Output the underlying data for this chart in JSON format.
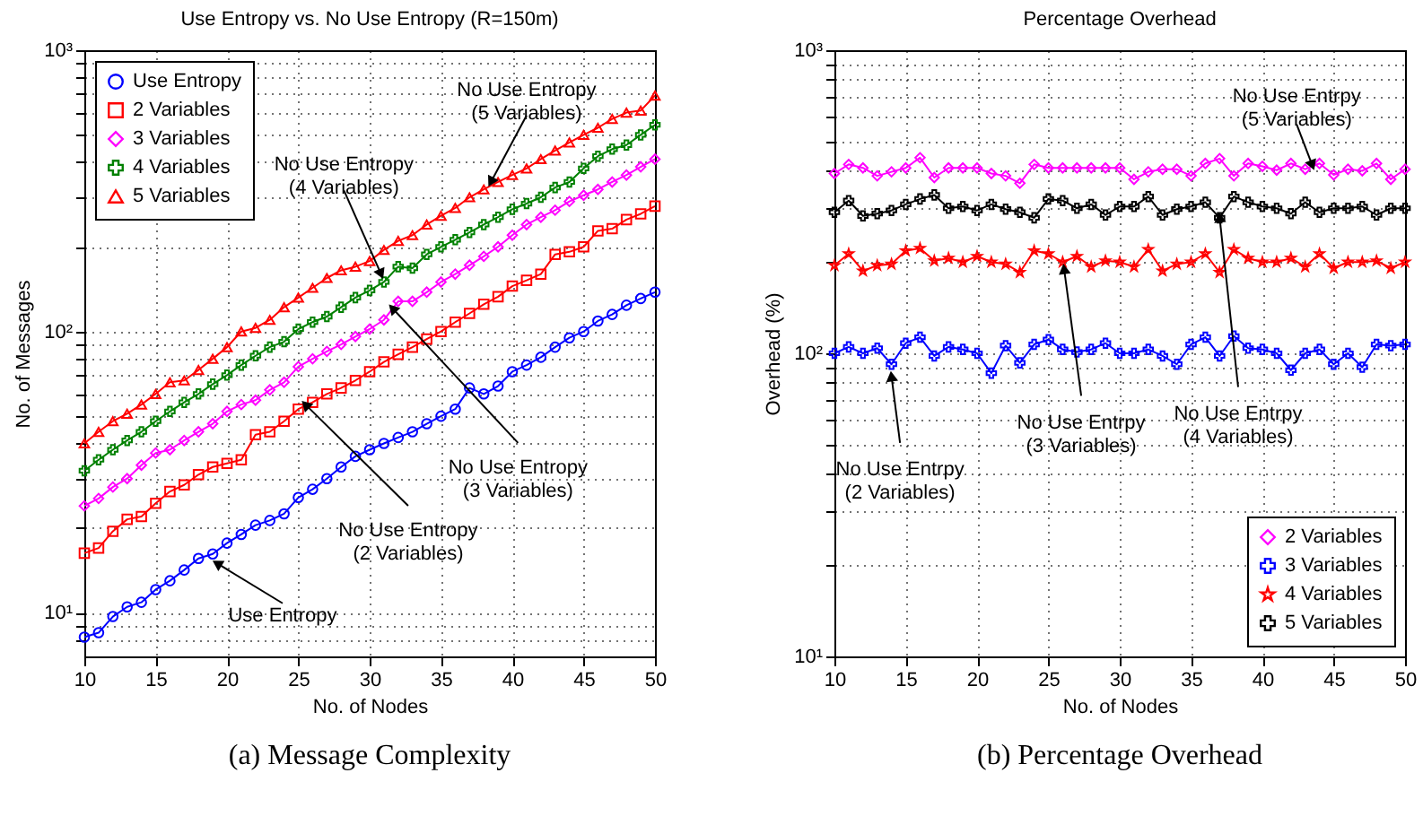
{
  "chart_data": [
    {
      "type": "line",
      "title": "Use Entropy vs. No Use Entropy (R=150m)",
      "xlabel": "No. of Nodes",
      "ylabel": "No. of Messages",
      "x": [
        10,
        11,
        12,
        13,
        14,
        15,
        16,
        17,
        18,
        19,
        20,
        21,
        22,
        23,
        24,
        25,
        26,
        27,
        28,
        29,
        30,
        31,
        32,
        33,
        34,
        35,
        36,
        37,
        38,
        39,
        40,
        41,
        42,
        43,
        44,
        45,
        46,
        47,
        48,
        49,
        50
      ],
      "series": [
        {
          "name": "Use Entropy",
          "color": "#0000ff",
          "marker": "circle",
          "values": [
            8.2,
            8.5,
            9.7,
            10.5,
            10.9,
            12.1,
            13,
            14.2,
            15.6,
            16.2,
            17.7,
            19,
            20.5,
            21.3,
            22.5,
            25.7,
            27.5,
            30,
            33,
            36,
            38,
            40,
            42,
            44,
            47,
            50,
            53,
            63,
            60,
            64,
            72,
            76,
            81,
            88,
            95,
            100,
            109,
            115,
            124,
            131,
            138
          ]
        },
        {
          "name": "2 Variables",
          "color": "#ff0000",
          "marker": "square",
          "values": [
            16.3,
            17,
            19.5,
            21.5,
            22,
            24.5,
            27,
            28.5,
            31,
            33,
            34,
            35,
            43,
            44,
            48,
            53,
            56,
            60,
            63,
            67,
            72,
            78,
            83,
            88,
            94,
            100,
            108,
            116,
            125,
            133,
            145,
            152,
            160,
            188,
            192,
            200,
            228,
            232,
            250,
            262,
            279
          ]
        },
        {
          "name": "3 Variables",
          "color": "#ff00ff",
          "marker": "diamond",
          "values": [
            24,
            25.5,
            28,
            30,
            33.5,
            37,
            38,
            41,
            44,
            47,
            52,
            55,
            57,
            62,
            66,
            75,
            80,
            85,
            90,
            96,
            102,
            110,
            128,
            128,
            138,
            150,
            160,
            172,
            185,
            200,
            220,
            240,
            255,
            270,
            290,
            305,
            320,
            340,
            360,
            385,
            410
          ]
        },
        {
          "name": "4 Variables",
          "color": "#008000",
          "marker": "cross",
          "values": [
            32,
            35,
            38,
            41,
            44,
            48,
            52,
            56,
            60,
            65,
            70,
            76,
            82,
            88,
            92,
            102,
            108,
            113,
            122,
            132,
            140,
            150,
            170,
            168,
            188,
            200,
            212,
            225,
            240,
            255,
            272,
            285,
            300,
            325,
            340,
            380,
            420,
            445,
            460,
            500,
            543
          ]
        },
        {
          "name": "5 Variables",
          "color": "#ff0000",
          "marker": "triangle",
          "values": [
            40,
            44,
            48,
            51,
            55,
            60,
            66,
            67,
            73,
            80,
            88,
            100,
            103,
            110,
            122,
            132,
            143,
            155,
            165,
            170,
            178,
            195,
            210,
            220,
            240,
            258,
            275,
            300,
            320,
            340,
            360,
            380,
            410,
            440,
            470,
            500,
            530,
            570,
            600,
            610,
            690
          ]
        }
      ],
      "xlim": [
        10,
        50
      ],
      "xticks": [
        10,
        15,
        20,
        25,
        30,
        35,
        40,
        45,
        50
      ],
      "ylim": [
        7,
        1000
      ],
      "yticks": [
        {
          "value": 8,
          "label": null
        },
        {
          "value": 9,
          "label": null
        },
        {
          "value": 10,
          "label": "10¹"
        },
        {
          "value": 20,
          "label": null
        },
        {
          "value": 30,
          "label": null
        },
        {
          "value": 40,
          "label": null
        },
        {
          "value": 50,
          "label": null
        },
        {
          "value": 60,
          "label": null
        },
        {
          "value": 70,
          "label": null
        },
        {
          "value": 80,
          "label": null
        },
        {
          "value": 90,
          "label": null
        },
        {
          "value": 100,
          "label": "10²"
        },
        {
          "value": 200,
          "label": null
        },
        {
          "value": 300,
          "label": null
        },
        {
          "value": 400,
          "label": null
        },
        {
          "value": 500,
          "label": null
        },
        {
          "value": 600,
          "label": null
        },
        {
          "value": 700,
          "label": null
        },
        {
          "value": 800,
          "label": null
        },
        {
          "value": 900,
          "label": null
        },
        {
          "value": 1000,
          "label": "10³"
        }
      ],
      "log": "y",
      "grid": true,
      "legend": "top left",
      "annotations": [
        {
          "text": "No Use Entropy\n(5 Variables)",
          "x": 38.5,
          "y": 340
        },
        {
          "text": "No Use Entropy\n(4 Variables)",
          "x": 30.8,
          "y": 160
        },
        {
          "text": "No Use Entropy\n(3 Variables)",
          "x": 31.6,
          "y": 121
        },
        {
          "text": "No Use Entropy\n(2 Variables)",
          "x": 25.5,
          "y": 55
        },
        {
          "text": "Use Entropy",
          "x": 19.3,
          "y": 15
        },
        "(a) Message Complexity"
      ]
    },
    {
      "type": "line",
      "title": "Percentage Overhead",
      "xlabel": "No. of Nodes",
      "ylabel": "Overhead (%)",
      "x": [
        10,
        11,
        12,
        13,
        14,
        15,
        16,
        17,
        18,
        19,
        20,
        21,
        22,
        23,
        24,
        25,
        26,
        27,
        28,
        29,
        30,
        31,
        32,
        33,
        34,
        35,
        36,
        37,
        38,
        39,
        40,
        41,
        42,
        43,
        44,
        45,
        46,
        47,
        48,
        49,
        50
      ],
      "series": [
        {
          "name": "2 Variables",
          "color": "#ff00ff",
          "marker": "diamond",
          "values": [
            392,
            420,
            409,
            385,
            397,
            409,
            442,
            380,
            409,
            409,
            409,
            392,
            385,
            364,
            420,
            409,
            409,
            409,
            409,
            409,
            409,
            375,
            397,
            405,
            405,
            385,
            423,
            439,
            385,
            423,
            414,
            402,
            423,
            405,
            423,
            388,
            405,
            400,
            423,
            375,
            405
          ]
        },
        {
          "name": "3 Variables",
          "color": "#0000ff",
          "marker": "cross",
          "values": [
            100,
            105,
            100,
            104,
            92,
            108,
            113,
            98,
            105,
            103,
            100,
            86,
            106,
            93,
            107,
            111,
            103,
            101,
            103,
            108,
            100,
            100,
            103,
            98,
            92,
            107,
            113,
            98,
            114,
            104,
            103,
            100,
            88,
            100,
            103,
            92,
            100,
            90,
            107,
            106,
            107
          ]
        },
        {
          "name": "4 Variables",
          "color": "#ff0000",
          "marker": "star",
          "values": [
            195,
            213,
            187,
            195,
            197,
            218,
            222,
            202,
            206,
            200,
            209,
            200,
            197,
            185,
            218,
            213,
            200,
            209,
            193,
            202,
            200,
            193,
            220,
            187,
            197,
            200,
            213,
            185,
            220,
            206,
            200,
            200,
            206,
            193,
            213,
            191,
            200,
            200,
            202,
            191,
            200
          ]
        },
        {
          "name": "5 Variables",
          "color": "#000000",
          "marker": "cross",
          "values": [
            292,
            319,
            284,
            289,
            296,
            310,
            323,
            333,
            301,
            305,
            296,
            310,
            299,
            292,
            280,
            323,
            319,
            301,
            310,
            286,
            305,
            305,
            329,
            286,
            299,
            305,
            315,
            280,
            329,
            315,
            305,
            301,
            289,
            315,
            292,
            301,
            301,
            305,
            286,
            301,
            301
          ]
        }
      ],
      "xlim": [
        10,
        50
      ],
      "xticks": [
        10,
        15,
        20,
        25,
        30,
        35,
        40,
        45,
        50
      ],
      "ylim": [
        10,
        1000
      ],
      "yticks": [
        {
          "value": 10,
          "label": "10¹"
        },
        {
          "value": 20,
          "label": null
        },
        {
          "value": 30,
          "label": null
        },
        {
          "value": 40,
          "label": null
        },
        {
          "value": 50,
          "label": null
        },
        {
          "value": 60,
          "label": null
        },
        {
          "value": 70,
          "label": null
        },
        {
          "value": 80,
          "label": null
        },
        {
          "value": 90,
          "label": null
        },
        {
          "value": 100,
          "label": "10²"
        },
        {
          "value": 200,
          "label": null
        },
        {
          "value": 300,
          "label": null
        },
        {
          "value": 400,
          "label": null
        },
        {
          "value": 500,
          "label": null
        },
        {
          "value": 600,
          "label": null
        },
        {
          "value": 700,
          "label": null
        },
        {
          "value": 800,
          "label": null
        },
        {
          "value": 900,
          "label": null
        },
        {
          "value": 1000,
          "label": "10³"
        }
      ],
      "log": "y",
      "grid": true,
      "legend": "bottom right",
      "annotations": [
        {
          "text": "No Use Entrpy\n(5 Variables)",
          "x": 43.5,
          "y": 417
        },
        {
          "text": "No Use Entrpy\n(2 Variables)",
          "x": 14,
          "y": 84
        },
        {
          "text": "No Use Entrpy\n(3 Variables)",
          "x": 26.1,
          "y": 190
        },
        {
          "text": "No Use Entrpy\n(4 Variables)",
          "x": 37,
          "y": 281
        },
        "(b) Percentage Overhead"
      ]
    }
  ]
}
